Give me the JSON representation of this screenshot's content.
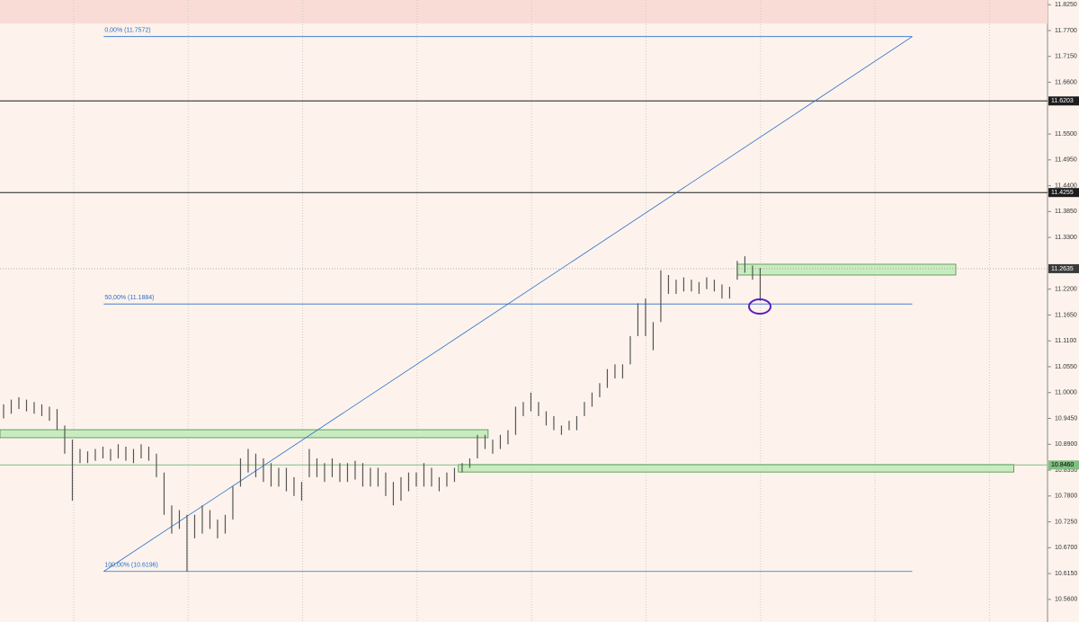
{
  "chart_data": {
    "type": "ohlc",
    "high": [
      10.975,
      10.985,
      10.99,
      10.985,
      10.98,
      10.975,
      10.97,
      10.965,
      10.93,
      10.9,
      10.88,
      10.875,
      10.88,
      10.885,
      10.88,
      10.89,
      10.885,
      10.88,
      10.89,
      10.885,
      10.87,
      10.83,
      10.76,
      10.75,
      10.74,
      10.74,
      10.76,
      10.75,
      10.73,
      10.74,
      10.8,
      10.86,
      10.88,
      10.87,
      10.86,
      10.85,
      10.84,
      10.84,
      10.82,
      10.81,
      10.88,
      10.86,
      10.85,
      10.86,
      10.85,
      10.85,
      10.855,
      10.85,
      10.84,
      10.84,
      10.83,
      10.81,
      10.82,
      10.83,
      10.83,
      10.85,
      10.84,
      10.82,
      10.83,
      10.84,
      10.85,
      10.86,
      10.91,
      10.91,
      10.9,
      10.91,
      10.92,
      10.97,
      10.98,
      11.0,
      10.98,
      10.96,
      10.95,
      10.93,
      10.94,
      10.95,
      10.98,
      11.0,
      11.02,
      11.05,
      11.06,
      11.06,
      11.12,
      11.19,
      11.2,
      11.15,
      11.26,
      11.25,
      11.24,
      11.245,
      11.24,
      11.235,
      11.245,
      11.24,
      11.23,
      11.225,
      11.28,
      11.29,
      11.27,
      11.265
    ],
    "low": [
      10.945,
      10.955,
      10.965,
      10.96,
      10.955,
      10.95,
      10.94,
      10.92,
      10.87,
      10.77,
      10.85,
      10.85,
      10.855,
      10.86,
      10.855,
      10.86,
      10.855,
      10.85,
      10.86,
      10.855,
      10.82,
      10.74,
      10.7,
      10.71,
      10.62,
      10.69,
      10.7,
      10.71,
      10.69,
      10.7,
      10.73,
      10.8,
      10.83,
      10.82,
      10.81,
      10.8,
      10.8,
      10.79,
      10.78,
      10.77,
      10.82,
      10.82,
      10.81,
      10.82,
      10.81,
      10.81,
      10.815,
      10.8,
      10.8,
      10.8,
      10.78,
      10.76,
      10.77,
      10.79,
      10.8,
      10.8,
      10.8,
      10.79,
      10.8,
      10.81,
      10.83,
      10.84,
      10.86,
      10.88,
      10.87,
      10.88,
      10.89,
      10.91,
      10.95,
      10.96,
      10.95,
      10.93,
      10.92,
      10.91,
      10.92,
      10.92,
      10.95,
      10.97,
      10.99,
      11.01,
      11.03,
      11.03,
      11.06,
      11.12,
      11.12,
      11.09,
      11.15,
      11.21,
      11.21,
      11.215,
      11.215,
      11.21,
      11.22,
      11.215,
      11.2,
      11.2,
      11.24,
      11.255,
      11.24,
      11.195
    ],
    "color": "#555555",
    "xlim": [
      -0.47,
      136.6
    ],
    "ylim": [
      10.512,
      11.835
    ],
    "yticks": [
      {
        "value": 11.825,
        "label": "11.8250"
      },
      {
        "value": 11.77,
        "label": "11.7700"
      },
      {
        "value": 11.715,
        "label": "11.7150"
      },
      {
        "value": 11.66,
        "label": "11.6600"
      },
      {
        "value": 11.55,
        "label": "11.5500"
      },
      {
        "value": 11.495,
        "label": "11.4950"
      },
      {
        "value": 11.44,
        "label": "11.4400"
      },
      {
        "value": 11.385,
        "label": "11.3850"
      },
      {
        "value": 11.33,
        "label": "11.3300"
      },
      {
        "value": 11.22,
        "label": "11.2200"
      },
      {
        "value": 11.165,
        "label": "11.1650"
      },
      {
        "value": 11.11,
        "label": "11.1100"
      },
      {
        "value": 11.055,
        "label": "11.0550"
      },
      {
        "value": 11,
        "label": "11.0000"
      },
      {
        "value": 10.945,
        "label": "10.9450"
      },
      {
        "value": 10.89,
        "label": "10.8900"
      },
      {
        "value": 10.835,
        "label": "10.8350"
      },
      {
        "value": 10.78,
        "label": "10.7800"
      },
      {
        "value": 10.725,
        "label": "10.7250"
      },
      {
        "value": 10.67,
        "label": "10.6700"
      },
      {
        "value": 10.615,
        "label": "10.6150"
      },
      {
        "value": 10.56,
        "label": "10.5600"
      }
    ],
    "hlines": [
      {
        "value": 11.6203,
        "label": "11.6203",
        "color": "#1c1c1c"
      },
      {
        "value": 11.4255,
        "label": "11.4255",
        "color": "#1c1c1c"
      },
      {
        "value": 11.2635,
        "label": "11.2635",
        "color": "#3a3a3a"
      },
      {
        "value": 10.846,
        "label": "10.8460",
        "color": "#7fbf7f"
      }
    ],
    "fib": {
      "x": [
        13.1,
        118.9
      ],
      "color": "#2a6fc9",
      "levels": [
        {
          "value": 11.7572,
          "label": "0,00% (11.7572)"
        },
        {
          "value": 11.1884,
          "label": "50,00% (11.1884)"
        },
        {
          "value": 10.6196,
          "label": "100,00% (10.6196)"
        }
      ]
    },
    "zones": [
      {
        "x": [
          -0.47,
          63.4
        ],
        "y": [
          10.904,
          10.921
        ]
      },
      {
        "x": [
          59.5,
          132.2
        ],
        "y": [
          10.831,
          10.847
        ]
      },
      {
        "x": [
          96,
          124.6
        ],
        "y": [
          11.25,
          11.273
        ]
      }
    ],
    "zone_color": "#c8ecc0",
    "band_color": "#fadcd6"
  }
}
